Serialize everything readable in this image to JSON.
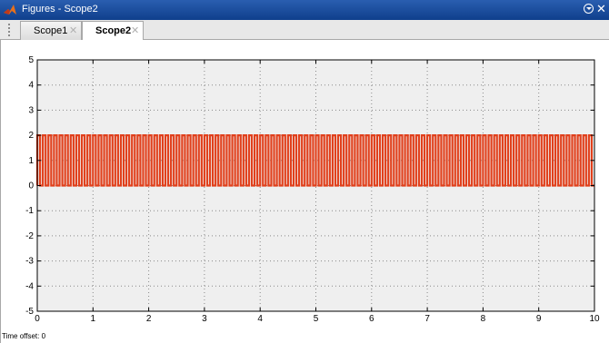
{
  "window": {
    "title": "Figures - Scope2",
    "app_icon": "matlab-logo-icon",
    "close_symbol": "✕"
  },
  "tabs": [
    {
      "label": "Scope1",
      "active": false,
      "close_symbol": "✕"
    },
    {
      "label": "Scope2",
      "active": true,
      "close_symbol": "✕"
    }
  ],
  "status": {
    "time_offset_label": "Time offset:",
    "time_offset_value": "0"
  },
  "chart_data": {
    "type": "line",
    "title": "",
    "xlabel": "",
    "ylabel": "",
    "xlim": [
      0,
      10
    ],
    "ylim": [
      -5,
      5
    ],
    "x_ticks": [
      0,
      1,
      2,
      3,
      4,
      5,
      6,
      7,
      8,
      9,
      10
    ],
    "y_ticks": [
      -5,
      -4,
      -3,
      -2,
      -1,
      0,
      1,
      2,
      3,
      4,
      5
    ],
    "grid": true,
    "background_color": "#efefef",
    "series": [
      {
        "color": "#e1401c",
        "waveform": "pulse",
        "low": 0,
        "high": 2,
        "period": 0.1,
        "duty_cycle": 0.5,
        "x_start": 0,
        "x_end": 10
      }
    ]
  }
}
